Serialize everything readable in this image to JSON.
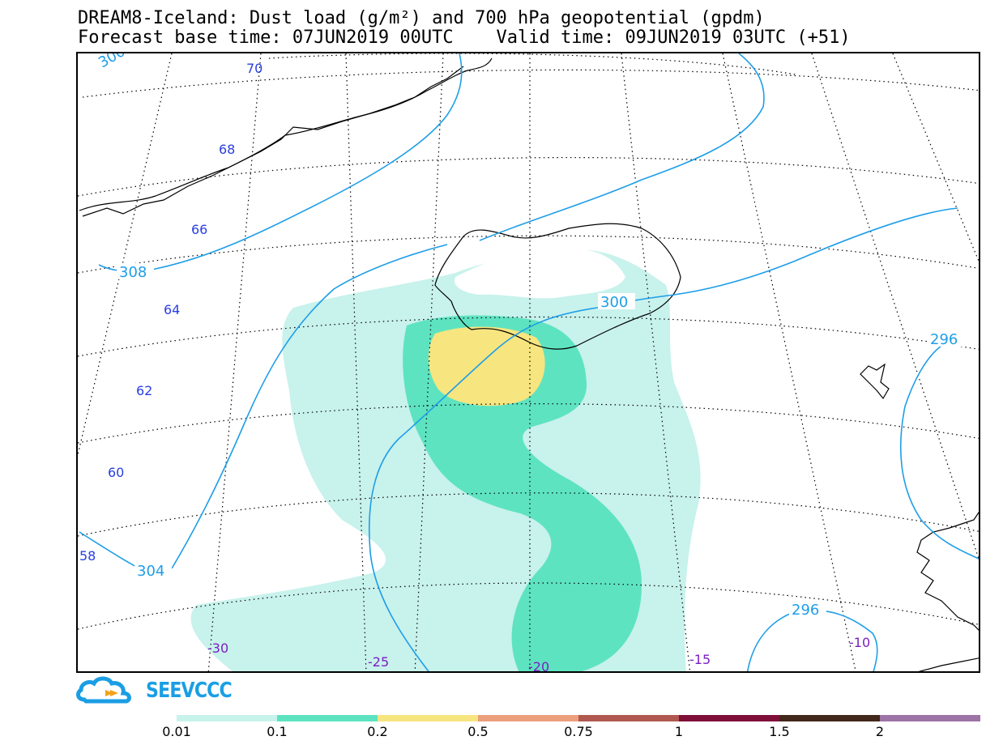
{
  "title": {
    "line1": "DREAM8-Iceland: Dust load (g/m²) and 700 hPa geopotential (gpdm)",
    "line2": "Forecast base time: 07JUN2019 00UTC    Valid time: 09JUN2019 03UTC (+51)"
  },
  "map": {
    "latitude_labels": [
      "70",
      "68",
      "66",
      "64",
      "62",
      "60",
      "58"
    ],
    "longitude_labels": [
      "-30",
      "-25",
      "-20",
      "-15",
      "-10"
    ],
    "contour_labels": [
      "308",
      "300",
      "296",
      "304",
      "296",
      "300"
    ]
  },
  "logo": {
    "text": "SEEVCCC"
  },
  "colorbar": {
    "colors": [
      "#c8f2ec",
      "#5ee3c1",
      "#f7e57f",
      "#ec9f7c",
      "#b05850",
      "#7f0f39",
      "#41281a",
      "#9c74a5"
    ],
    "labels": [
      "0.01",
      "0.1",
      "0.2",
      "0.5",
      "0.75",
      "1",
      "1.5",
      "2"
    ]
  }
}
